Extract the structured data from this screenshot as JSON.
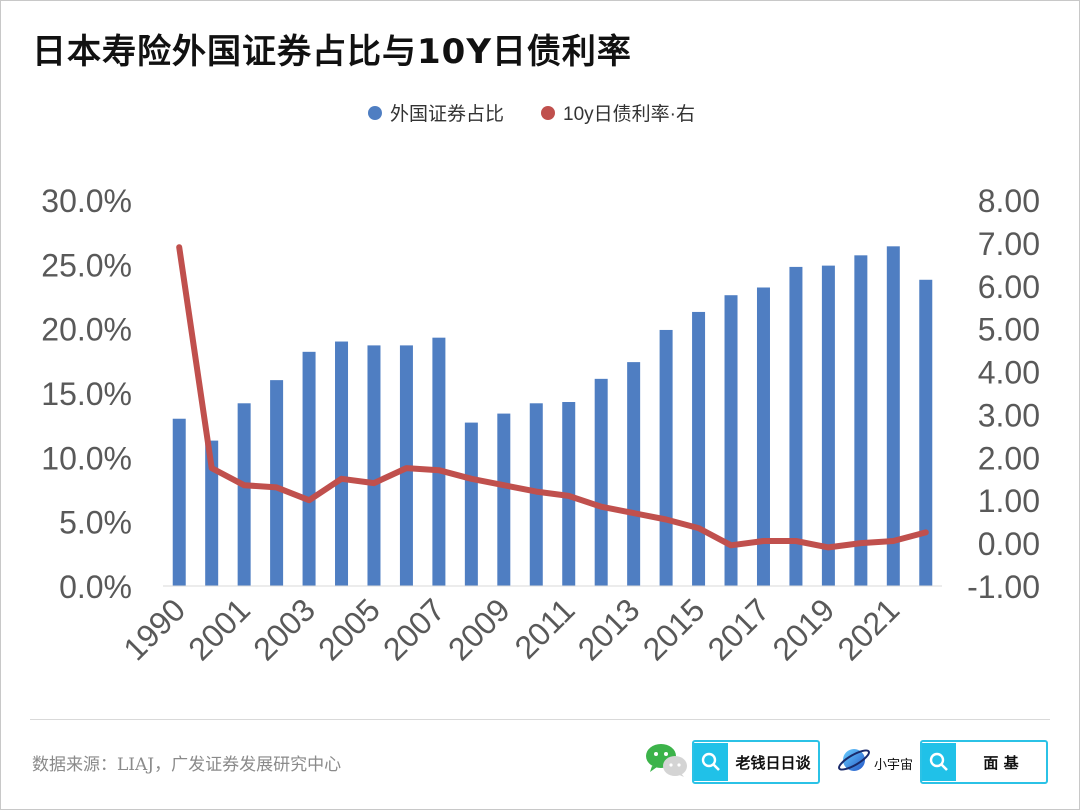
{
  "title": "日本寿险外国证券占比与10Y日债利率",
  "source": "数据来源：LIAJ，广发证券发展研究中心",
  "logos": {
    "box1_label": "老钱日日谈",
    "planet_label": "小宇宙",
    "box2_label": "面 基",
    "wechat_icon": "wechat-icon",
    "search_icon": "search-icon"
  },
  "colors": {
    "bar": "#4f7ec2",
    "line": "#c0504d",
    "accent": "#2bc2e6"
  },
  "chart_data": {
    "type": "bar",
    "title": "日本寿险外国证券占比与10Y日债利率",
    "legend_position": "top-center",
    "legend": [
      "外国证券占比",
      "10y日债利率·右"
    ],
    "categories": [
      "1990",
      "2000",
      "2001",
      "2002",
      "2003",
      "2004",
      "2005",
      "2006",
      "2007",
      "2008",
      "2009",
      "2010",
      "2011",
      "2012",
      "2013",
      "2014",
      "2015",
      "2016",
      "2017",
      "2018",
      "2019",
      "2020",
      "2021",
      "2022"
    ],
    "x_tick_labels": [
      "1990",
      "2001",
      "2003",
      "2005",
      "2007",
      "2009",
      "2011",
      "2013",
      "2015",
      "2017",
      "2019",
      "2021"
    ],
    "series": [
      {
        "name": "外国证券占比",
        "type": "bar",
        "axis": "left",
        "unit": "%",
        "values": [
          13.0,
          11.3,
          14.2,
          16.0,
          18.2,
          19.0,
          18.7,
          18.7,
          19.3,
          12.7,
          13.4,
          14.2,
          14.3,
          16.1,
          17.4,
          19.9,
          21.3,
          22.6,
          23.2,
          24.8,
          24.9,
          25.7,
          26.4,
          23.8
        ]
      },
      {
        "name": "10y日债利率·右",
        "type": "line",
        "axis": "right",
        "values": [
          6.9,
          1.75,
          1.35,
          1.3,
          1.0,
          1.5,
          1.4,
          1.75,
          1.7,
          1.5,
          1.35,
          1.2,
          1.1,
          0.85,
          0.7,
          0.55,
          0.35,
          -0.05,
          0.05,
          0.05,
          -0.1,
          0.0,
          0.05,
          0.25
        ]
      }
    ],
    "y_left": {
      "min": 0,
      "max": 30,
      "step": 5,
      "tick_labels": [
        "0.0%",
        "5.0%",
        "10.0%",
        "15.0%",
        "20.0%",
        "25.0%",
        "30.0%"
      ]
    },
    "y_right": {
      "min": -1,
      "max": 8,
      "step": 1,
      "tick_labels": [
        "-1.00",
        "0.00",
        "1.00",
        "2.00",
        "3.00",
        "4.00",
        "5.00",
        "6.00",
        "7.00",
        "8.00"
      ]
    },
    "grid": false
  }
}
